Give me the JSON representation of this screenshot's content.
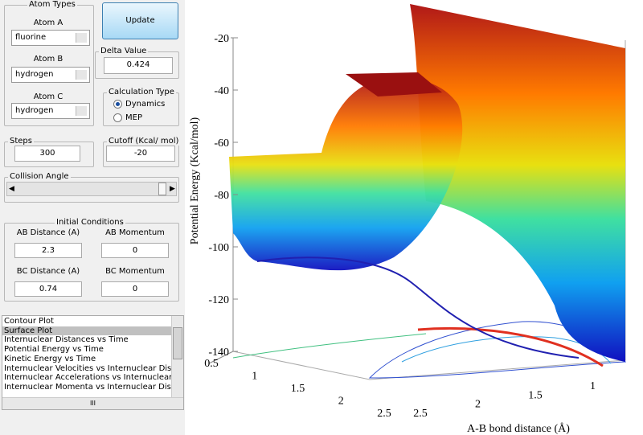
{
  "atom_types": {
    "title": "Atom Types",
    "atom_a": {
      "label": "Atom A",
      "value": "fluorine"
    },
    "atom_b": {
      "label": "Atom B",
      "value": "hydrogen"
    },
    "atom_c": {
      "label": "Atom C",
      "value": "hydrogen"
    }
  },
  "update_button": "Update",
  "delta_value": {
    "label": "Delta Value",
    "value": "0.424"
  },
  "calculation_type": {
    "title": "Calculation Type",
    "options": [
      "Dynamics",
      "MEP"
    ],
    "selected": 0
  },
  "steps": {
    "label": "Steps",
    "value": "300"
  },
  "cutoff": {
    "label": "Cutoff (Kcal/ mol)",
    "value": "-20"
  },
  "collision_angle": {
    "label": "Collision Angle"
  },
  "initial_conditions": {
    "title": "Initial Conditions",
    "fields": [
      {
        "label": "AB Distance (A)",
        "value": "2.3"
      },
      {
        "label": "AB Momentum",
        "value": "0"
      },
      {
        "label": "BC Distance (A)",
        "value": "0.74"
      },
      {
        "label": "BC Momentum",
        "value": "0"
      }
    ]
  },
  "plot_list": {
    "items": [
      "Contour Plot",
      "Surface Plot",
      "Internuclear Distances vs Time",
      "Potential Energy vs Time",
      "Kinetic Energy vs Time",
      "Internuclear Velocities vs Internuclear Distance",
      "Internuclear Accelerations vs Internuclear Dista",
      "Internuclear Momenta vs Internuclear Distance"
    ],
    "selected": 1,
    "scroll_grip": "III"
  },
  "plot": {
    "z_label": "Potential Energy (Kcal/mol)",
    "x_label": "A-B bond distance (Å)",
    "zticks": [
      -20,
      -40,
      -60,
      -80,
      -100,
      -120,
      -140
    ],
    "left_ticks": [
      0.5,
      1,
      1.5,
      2,
      2.5
    ],
    "right_ticks": [
      2.5,
      2,
      1.5,
      1
    ]
  }
}
